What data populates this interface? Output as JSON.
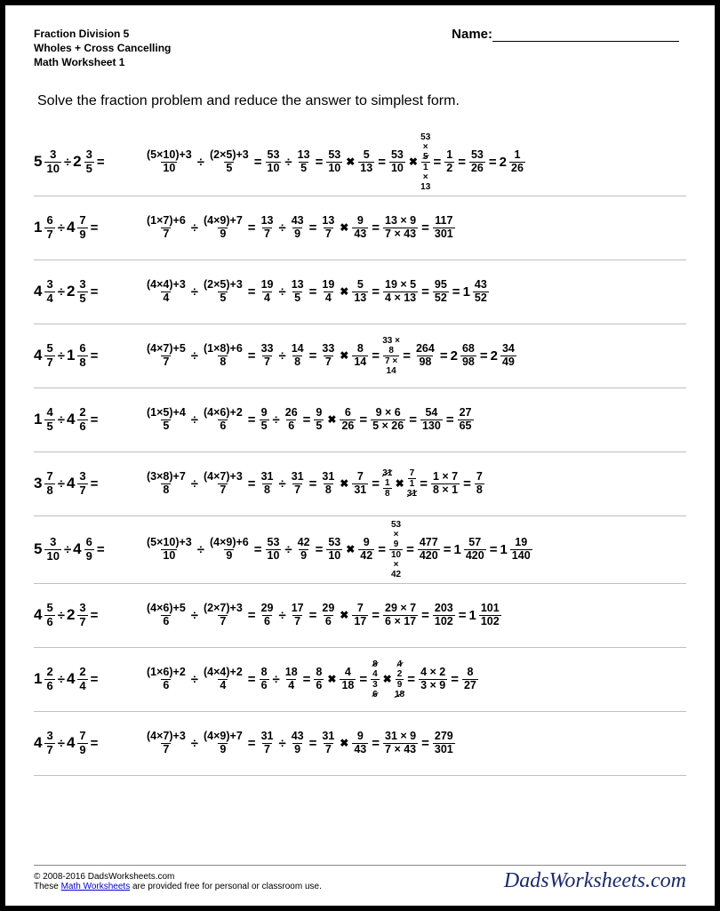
{
  "header": {
    "line1": "Fraction Division 5",
    "line2": "Wholes + Cross Cancelling",
    "line3": "Math Worksheet 1",
    "name_label": "Name:"
  },
  "instruction": "Solve the fraction problem and reduce the answer to simplest form.",
  "colors": {
    "page_bg": "#ffffff",
    "border": "#bfbfbf",
    "text": "#000000",
    "link": "#0000cc",
    "brand": "#1a2a6c"
  },
  "problems": [
    {
      "left": {
        "w1": "5",
        "n1": "3",
        "d1": "10",
        "w2": "2",
        "n2": "3",
        "d2": "5"
      },
      "steps": [
        {
          "t": "frac",
          "n": "(5×10)+3",
          "d": "10"
        },
        {
          "t": "op",
          "v": "÷"
        },
        {
          "t": "frac",
          "n": "(2×5)+3",
          "d": "5"
        },
        {
          "t": "op",
          "v": "="
        },
        {
          "t": "frac",
          "n": "53",
          "d": "10"
        },
        {
          "t": "op",
          "v": "÷"
        },
        {
          "t": "frac",
          "n": "13",
          "d": "5"
        },
        {
          "t": "op",
          "v": "="
        },
        {
          "t": "frac",
          "n": "53",
          "d": "10"
        },
        {
          "t": "op",
          "v": "✖"
        },
        {
          "t": "frac",
          "n": "5",
          "d": "13"
        },
        {
          "t": "op",
          "v": "="
        },
        {
          "t": "tb",
          "t1": "",
          "n": "53",
          "d": "10",
          "b1": "",
          "sn": "",
          "sd": ""
        },
        {
          "t": "op",
          "v": "✖"
        },
        {
          "t": "tbx",
          "tt": "53",
          "tx": "×",
          "n": "5",
          "d": "1",
          "bx": "×",
          "bb": "13",
          "sn": "5",
          "sd": "10"
        },
        {
          "t": "op",
          "v": "="
        },
        {
          "t": "frac",
          "n": "1",
          "d": "2"
        },
        {
          "t": "op",
          "v": "="
        },
        {
          "t": "frac",
          "n": "53",
          "d": "26"
        },
        {
          "t": "op",
          "v": "="
        },
        {
          "t": "mixed",
          "w": "2",
          "n": "1",
          "d": "26"
        }
      ]
    },
    {
      "left": {
        "w1": "1",
        "n1": "6",
        "d1": "7",
        "w2": "4",
        "n2": "7",
        "d2": "9"
      },
      "steps": [
        {
          "t": "frac",
          "n": "(1×7)+6",
          "d": "7"
        },
        {
          "t": "op",
          "v": "÷"
        },
        {
          "t": "frac",
          "n": "(4×9)+7",
          "d": "9"
        },
        {
          "t": "op",
          "v": "="
        },
        {
          "t": "frac",
          "n": "13",
          "d": "7"
        },
        {
          "t": "op",
          "v": "÷"
        },
        {
          "t": "frac",
          "n": "43",
          "d": "9"
        },
        {
          "t": "op",
          "v": "="
        },
        {
          "t": "frac",
          "n": "13",
          "d": "7"
        },
        {
          "t": "op",
          "v": "✖"
        },
        {
          "t": "frac",
          "n": "9",
          "d": "43"
        },
        {
          "t": "op",
          "v": "="
        },
        {
          "t": "frac",
          "n": "13 × 9",
          "d": "7 × 43"
        },
        {
          "t": "op",
          "v": "="
        },
        {
          "t": "frac",
          "n": "117",
          "d": "301"
        }
      ]
    },
    {
      "left": {
        "w1": "4",
        "n1": "3",
        "d1": "4",
        "w2": "2",
        "n2": "3",
        "d2": "5"
      },
      "steps": [
        {
          "t": "frac",
          "n": "(4×4)+3",
          "d": "4"
        },
        {
          "t": "op",
          "v": "÷"
        },
        {
          "t": "frac",
          "n": "(2×5)+3",
          "d": "5"
        },
        {
          "t": "op",
          "v": "="
        },
        {
          "t": "frac",
          "n": "19",
          "d": "4"
        },
        {
          "t": "op",
          "v": "÷"
        },
        {
          "t": "frac",
          "n": "13",
          "d": "5"
        },
        {
          "t": "op",
          "v": "="
        },
        {
          "t": "frac",
          "n": "19",
          "d": "4"
        },
        {
          "t": "op",
          "v": "✖"
        },
        {
          "t": "frac",
          "n": "5",
          "d": "13"
        },
        {
          "t": "op",
          "v": "="
        },
        {
          "t": "frac",
          "n": "19 × 5",
          "d": "4 × 13"
        },
        {
          "t": "op",
          "v": "="
        },
        {
          "t": "frac",
          "n": "95",
          "d": "52"
        },
        {
          "t": "op",
          "v": "="
        },
        {
          "t": "mixed",
          "w": "1",
          "n": "43",
          "d": "52"
        }
      ]
    },
    {
      "left": {
        "w1": "4",
        "n1": "5",
        "d1": "7",
        "w2": "1",
        "n2": "6",
        "d2": "8"
      },
      "steps": [
        {
          "t": "frac",
          "n": "(4×7)+5",
          "d": "7"
        },
        {
          "t": "op",
          "v": "÷"
        },
        {
          "t": "frac",
          "n": "(1×8)+6",
          "d": "8"
        },
        {
          "t": "op",
          "v": "="
        },
        {
          "t": "frac",
          "n": "33",
          "d": "7"
        },
        {
          "t": "op",
          "v": "÷"
        },
        {
          "t": "frac",
          "n": "14",
          "d": "8"
        },
        {
          "t": "op",
          "v": "="
        },
        {
          "t": "frac",
          "n": "33",
          "d": "7"
        },
        {
          "t": "op",
          "v": "✖"
        },
        {
          "t": "frac",
          "n": "8",
          "d": "14"
        },
        {
          "t": "op",
          "v": "="
        },
        {
          "t": "tby",
          "tt": "33 ×",
          "n": "8",
          "d": "7 ×",
          "bb": "14"
        },
        {
          "t": "op",
          "v": "="
        },
        {
          "t": "frac",
          "n": "264",
          "d": "98"
        },
        {
          "t": "op",
          "v": "="
        },
        {
          "t": "mixed",
          "w": "2",
          "n": "68",
          "d": "98"
        },
        {
          "t": "op",
          "v": "="
        },
        {
          "t": "mixed",
          "w": "2",
          "n": "34",
          "d": "49"
        }
      ]
    },
    {
      "left": {
        "w1": "1",
        "n1": "4",
        "d1": "5",
        "w2": "4",
        "n2": "2",
        "d2": "6"
      },
      "steps": [
        {
          "t": "frac",
          "n": "(1×5)+4",
          "d": "5"
        },
        {
          "t": "op",
          "v": "÷"
        },
        {
          "t": "frac",
          "n": "(4×6)+2",
          "d": "6"
        },
        {
          "t": "op",
          "v": "="
        },
        {
          "t": "frac",
          "n": "9",
          "d": "5"
        },
        {
          "t": "op",
          "v": "÷"
        },
        {
          "t": "frac",
          "n": "26",
          "d": "6"
        },
        {
          "t": "op",
          "v": "="
        },
        {
          "t": "frac",
          "n": "9",
          "d": "5"
        },
        {
          "t": "op",
          "v": "✖"
        },
        {
          "t": "frac",
          "n": "6",
          "d": "26"
        },
        {
          "t": "op",
          "v": "="
        },
        {
          "t": "frac",
          "n": "9 × 6",
          "d": "5 × 26"
        },
        {
          "t": "op",
          "v": "="
        },
        {
          "t": "frac",
          "n": "54",
          "d": "130"
        },
        {
          "t": "op",
          "v": "="
        },
        {
          "t": "frac",
          "n": "27",
          "d": "65"
        }
      ]
    },
    {
      "left": {
        "w1": "3",
        "n1": "7",
        "d1": "8",
        "w2": "4",
        "n2": "3",
        "d2": "7"
      },
      "steps": [
        {
          "t": "frac",
          "n": "(3×8)+7",
          "d": "8"
        },
        {
          "t": "op",
          "v": "÷"
        },
        {
          "t": "frac",
          "n": "(4×7)+3",
          "d": "7"
        },
        {
          "t": "op",
          "v": "="
        },
        {
          "t": "frac",
          "n": "31",
          "d": "8"
        },
        {
          "t": "op",
          "v": "÷"
        },
        {
          "t": "frac",
          "n": "31",
          "d": "7"
        },
        {
          "t": "op",
          "v": "="
        },
        {
          "t": "frac",
          "n": "31",
          "d": "8"
        },
        {
          "t": "op",
          "v": "✖"
        },
        {
          "t": "frac",
          "n": "7",
          "d": "31"
        },
        {
          "t": "op",
          "v": "="
        },
        {
          "t": "fracx",
          "n": "1",
          "d": "8",
          "sn": "31"
        },
        {
          "t": "op",
          "v": "✖"
        },
        {
          "t": "fracx",
          "n": "7",
          "d": "1",
          "sd": "31"
        },
        {
          "t": "op",
          "v": "="
        },
        {
          "t": "frac",
          "n": "1 × 7",
          "d": "8 × 1"
        },
        {
          "t": "op",
          "v": "="
        },
        {
          "t": "frac",
          "n": "7",
          "d": "8"
        }
      ]
    },
    {
      "left": {
        "w1": "5",
        "n1": "3",
        "d1": "10",
        "w2": "4",
        "n2": "6",
        "d2": "9"
      },
      "steps": [
        {
          "t": "frac",
          "n": "(5×10)+3",
          "d": "10"
        },
        {
          "t": "op",
          "v": "÷"
        },
        {
          "t": "frac",
          "n": "(4×9)+6",
          "d": "9"
        },
        {
          "t": "op",
          "v": "="
        },
        {
          "t": "frac",
          "n": "53",
          "d": "10"
        },
        {
          "t": "op",
          "v": "÷"
        },
        {
          "t": "frac",
          "n": "42",
          "d": "9"
        },
        {
          "t": "op",
          "v": "="
        },
        {
          "t": "frac",
          "n": "53",
          "d": "10"
        },
        {
          "t": "op",
          "v": "✖"
        },
        {
          "t": "frac",
          "n": "9",
          "d": "42"
        },
        {
          "t": "op",
          "v": "="
        },
        {
          "t": "tby",
          "tt": "53\n×",
          "n": "9",
          "d": "10",
          "bb": "×\n42"
        },
        {
          "t": "op",
          "v": "="
        },
        {
          "t": "frac",
          "n": "477",
          "d": "420"
        },
        {
          "t": "op",
          "v": "="
        },
        {
          "t": "mixed",
          "w": "1",
          "n": "57",
          "d": "420"
        },
        {
          "t": "op",
          "v": "="
        },
        {
          "t": "mixed",
          "w": "1",
          "n": "19",
          "d": "140"
        }
      ]
    },
    {
      "left": {
        "w1": "4",
        "n1": "5",
        "d1": "6",
        "w2": "2",
        "n2": "3",
        "d2": "7"
      },
      "steps": [
        {
          "t": "frac",
          "n": "(4×6)+5",
          "d": "6"
        },
        {
          "t": "op",
          "v": "÷"
        },
        {
          "t": "frac",
          "n": "(2×7)+3",
          "d": "7"
        },
        {
          "t": "op",
          "v": "="
        },
        {
          "t": "frac",
          "n": "29",
          "d": "6"
        },
        {
          "t": "op",
          "v": "÷"
        },
        {
          "t": "frac",
          "n": "17",
          "d": "7"
        },
        {
          "t": "op",
          "v": "="
        },
        {
          "t": "frac",
          "n": "29",
          "d": "6"
        },
        {
          "t": "op",
          "v": "✖"
        },
        {
          "t": "frac",
          "n": "7",
          "d": "17"
        },
        {
          "t": "op",
          "v": "="
        },
        {
          "t": "frac",
          "n": "29 × 7",
          "d": "6 × 17"
        },
        {
          "t": "op",
          "v": "="
        },
        {
          "t": "frac",
          "n": "203",
          "d": "102"
        },
        {
          "t": "op",
          "v": "="
        },
        {
          "t": "mixed",
          "w": "1",
          "n": "101",
          "d": "102"
        }
      ]
    },
    {
      "left": {
        "w1": "1",
        "n1": "2",
        "d1": "6",
        "w2": "4",
        "n2": "2",
        "d2": "4"
      },
      "steps": [
        {
          "t": "frac",
          "n": "(1×6)+2",
          "d": "6"
        },
        {
          "t": "op",
          "v": "÷"
        },
        {
          "t": "frac",
          "n": "(4×4)+2",
          "d": "4"
        },
        {
          "t": "op",
          "v": "="
        },
        {
          "t": "frac",
          "n": "8",
          "d": "6"
        },
        {
          "t": "op",
          "v": "÷"
        },
        {
          "t": "frac",
          "n": "18",
          "d": "4"
        },
        {
          "t": "op",
          "v": "="
        },
        {
          "t": "frac",
          "n": "8",
          "d": "6"
        },
        {
          "t": "op",
          "v": "✖"
        },
        {
          "t": "frac",
          "n": "4",
          "d": "18"
        },
        {
          "t": "op",
          "v": "="
        },
        {
          "t": "fracx",
          "n": "4",
          "d": "3",
          "sn": "8",
          "sd": "6"
        },
        {
          "t": "op",
          "v": "✖"
        },
        {
          "t": "fracx",
          "n": "2",
          "d": "9",
          "sn": "4",
          "sd": "18"
        },
        {
          "t": "op",
          "v": "="
        },
        {
          "t": "frac",
          "n": "4 × 2",
          "d": "3 × 9"
        },
        {
          "t": "op",
          "v": "="
        },
        {
          "t": "frac",
          "n": "8",
          "d": "27"
        }
      ]
    },
    {
      "left": {
        "w1": "4",
        "n1": "3",
        "d1": "7",
        "w2": "4",
        "n2": "7",
        "d2": "9"
      },
      "steps": [
        {
          "t": "frac",
          "n": "(4×7)+3",
          "d": "7"
        },
        {
          "t": "op",
          "v": "÷"
        },
        {
          "t": "frac",
          "n": "(4×9)+7",
          "d": "9"
        },
        {
          "t": "op",
          "v": "="
        },
        {
          "t": "frac",
          "n": "31",
          "d": "7"
        },
        {
          "t": "op",
          "v": "÷"
        },
        {
          "t": "frac",
          "n": "43",
          "d": "9"
        },
        {
          "t": "op",
          "v": "="
        },
        {
          "t": "frac",
          "n": "31",
          "d": "7"
        },
        {
          "t": "op",
          "v": "✖"
        },
        {
          "t": "frac",
          "n": "9",
          "d": "43"
        },
        {
          "t": "op",
          "v": "="
        },
        {
          "t": "frac",
          "n": "31 × 9",
          "d": "7 × 43"
        },
        {
          "t": "op",
          "v": "="
        },
        {
          "t": "frac",
          "n": "279",
          "d": "301"
        }
      ]
    }
  ],
  "footer": {
    "copyright": "© 2008-2016 DadsWorksheets.com",
    "text1": "These ",
    "link": "Math Worksheets",
    "text2": "  are provided free for personal or classroom use.",
    "brand": "DadsWorksheets.com"
  }
}
